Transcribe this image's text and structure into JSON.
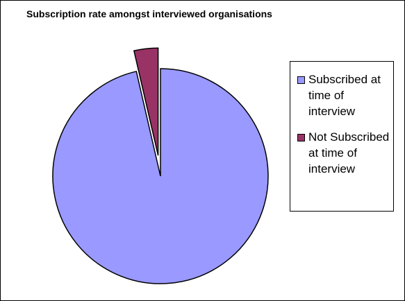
{
  "chart_data": {
    "type": "pie",
    "title": "Subscription rate amongst interviewed organisations",
    "categories": [
      "Subscribed at time of interview",
      "Not Subscribed at time of interview"
    ],
    "values": [
      96.4,
      3.6
    ],
    "colors": [
      "#9999ff",
      "#993366"
    ],
    "exploded": [
      false,
      true
    ],
    "legend": "right"
  }
}
